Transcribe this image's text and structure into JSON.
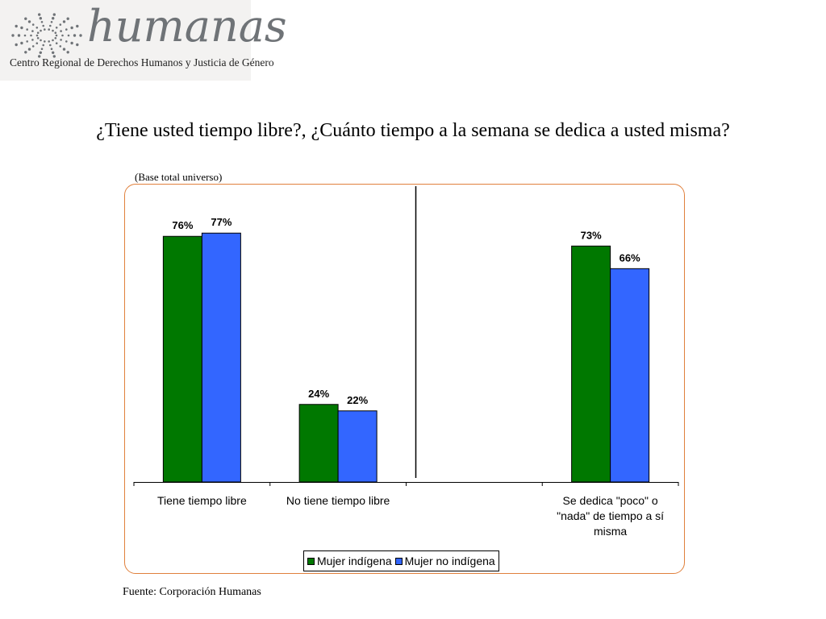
{
  "logo": {
    "wordmark": "humanas",
    "subtitle": "Centro Regional de Derechos Humanos y Justicia de Género"
  },
  "slide": {
    "title": "¿Tiene usted tiempo libre?, ¿Cuánto tiempo a la semana se dedica a usted misma?",
    "base_note": "(Base total universo)",
    "source": "Fuente: Corporación Humanas"
  },
  "colors": {
    "series_1": "#007800",
    "series_2": "#3366ff",
    "frame": "#e0803c"
  },
  "chart_data": {
    "type": "bar",
    "categories": [
      [
        "Tiene tiempo libre"
      ],
      [
        "No tiene tiempo libre"
      ],
      [],
      [
        "Se dedica \"poco\" o",
        "\"nada\" de tiempo a sí",
        "misma"
      ]
    ],
    "series": [
      {
        "name": "Mujer indígena",
        "values": [
          76,
          24,
          null,
          73
        ],
        "labels": [
          "76%",
          "24%",
          "",
          "73%"
        ]
      },
      {
        "name": "Mujer no indígena",
        "values": [
          77,
          22,
          null,
          66
        ],
        "labels": [
          "77%",
          "22%",
          "",
          "66%"
        ]
      }
    ],
    "ylim": [
      0,
      100
    ],
    "unit": "%",
    "separator_after_category": 2,
    "legend_position": "bottom",
    "grid": false
  }
}
